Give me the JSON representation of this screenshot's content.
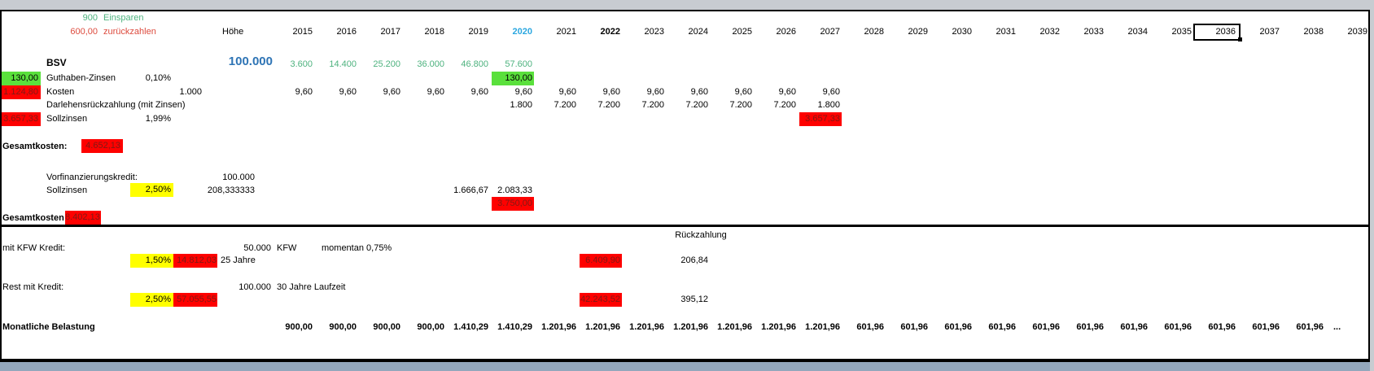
{
  "colors": {
    "green_text": "#4db27e",
    "red_text": "#dd4b3e",
    "blue_amount": "#2e74b5",
    "blue_year": "#2ba7e0",
    "cell_red_bg": "#fe0100",
    "cell_red_text": "#7f1a15",
    "cell_green_bg": "#5ae03c",
    "cell_yellow_bg": "#ffff00",
    "bottom_bar": "#93a7bc"
  },
  "header": {
    "years": [
      "2015",
      "2016",
      "2017",
      "2018",
      "2019",
      "2020",
      "2021",
      "2022",
      "2023",
      "2024",
      "2025",
      "2026",
      "2027",
      "2028",
      "2029",
      "2030",
      "2031",
      "2032",
      "2033",
      "2034",
      "2035",
      "2036",
      "2037",
      "2038",
      "2039"
    ],
    "blue_year": "2020",
    "bold_year": "2022",
    "selected_year": "2036",
    "hoehe_label": "Höhe"
  },
  "left": {
    "einsparen": {
      "value": "900",
      "label": "Einsparen"
    },
    "zurueckzahlen": {
      "value": "600,00",
      "label": "zurückzahlen"
    },
    "bsv": {
      "label": "BSV",
      "amount": "100.000"
    },
    "guthaben": {
      "side": "130,00",
      "label": "Guthaben-Zinsen",
      "rate": "0,10%"
    },
    "kosten": {
      "side": "1.124,80",
      "label": "Kosten",
      "hoehe": "1.000"
    },
    "darlehen": {
      "label": "Darlehensrückzahlung (mit Zinsen)"
    },
    "sollzinsen": {
      "side": "3.657,33",
      "label": "Sollzinsen",
      "rate": "1,99%"
    },
    "gesamtkosten": {
      "label": "Gesamtkosten:",
      "value": "4.652,13"
    },
    "vorfinanzierung": {
      "label": "Vorfinanzierungskredit:",
      "amount": "100.000"
    },
    "sollzinsen2": {
      "label": "Sollzinsen",
      "rate": "2,50%",
      "monthly": "208,333333"
    },
    "gesamtkosten_bsv": {
      "label": "Gesamtkosten BSV:",
      "value": "8.402,13"
    },
    "rueckzahlung_label": "Rückzahlung",
    "kfw": {
      "label": "mit KFW Kredit:",
      "amount": "50.000",
      "bank": "KFW",
      "note": "momentan 0,75%",
      "rate": "1,50%",
      "total": "14.812,03",
      "term": "25 Jahre"
    },
    "rest": {
      "label": "Rest mit Kredit:",
      "amount": "100.000",
      "term": "30 Jahre Laufzeit",
      "rate": "2,50%",
      "total": "57.055,55"
    },
    "monatlich_label": "Monatliche Belastung"
  },
  "year_data": {
    "bsv_values": [
      {
        "year": "2015",
        "value": "3.600"
      },
      {
        "year": "2016",
        "value": "14.400"
      },
      {
        "year": "2017",
        "value": "25.200"
      },
      {
        "year": "2018",
        "value": "36.000"
      },
      {
        "year": "2019",
        "value": "46.800"
      },
      {
        "year": "2020",
        "value": "57.600"
      }
    ],
    "guthaben_cells": [
      {
        "year": "2020",
        "value": "130,00",
        "bg": "green"
      }
    ],
    "kosten_values": [
      {
        "year": "2015",
        "value": "9,60"
      },
      {
        "year": "2016",
        "value": "9,60"
      },
      {
        "year": "2017",
        "value": "9,60"
      },
      {
        "year": "2018",
        "value": "9,60"
      },
      {
        "year": "2019",
        "value": "9,60"
      },
      {
        "year": "2020",
        "value": "9,60"
      },
      {
        "year": "2021",
        "value": "9,60"
      },
      {
        "year": "2022",
        "value": "9,60"
      },
      {
        "year": "2023",
        "value": "9,60"
      },
      {
        "year": "2024",
        "value": "9,60"
      },
      {
        "year": "2025",
        "value": "9,60"
      },
      {
        "year": "2026",
        "value": "9,60"
      },
      {
        "year": "2027",
        "value": "9,60"
      }
    ],
    "darlehen_values": [
      {
        "year": "2020",
        "value": "1.800"
      },
      {
        "year": "2021",
        "value": "7.200"
      },
      {
        "year": "2022",
        "value": "7.200"
      },
      {
        "year": "2023",
        "value": "7.200"
      },
      {
        "year": "2024",
        "value": "7.200"
      },
      {
        "year": "2025",
        "value": "7.200"
      },
      {
        "year": "2026",
        "value": "7.200"
      },
      {
        "year": "2027",
        "value": "1.800"
      }
    ],
    "sollzinsen_cells": [
      {
        "year": "2027",
        "value": "3.657,33",
        "bg": "red"
      }
    ],
    "vorfin_zinsen": [
      {
        "year": "2019",
        "value": "1.666,67"
      },
      {
        "year": "2020",
        "value": "2.083,33"
      }
    ],
    "vorfin_red": [
      {
        "year": "2020",
        "value": "3.750,00",
        "bg": "red"
      }
    ],
    "kfw_cells": [
      {
        "year": "2022",
        "value": "6.409,90",
        "bg": "red"
      },
      {
        "year": "2024",
        "value": "206,84"
      }
    ],
    "rest_cells": [
      {
        "year": "2022",
        "value": "42.243,52",
        "bg": "red"
      },
      {
        "year": "2024",
        "value": "395,12"
      }
    ],
    "monthly_values": [
      {
        "year": "2015",
        "value": "900,00"
      },
      {
        "year": "2016",
        "value": "900,00"
      },
      {
        "year": "2017",
        "value": "900,00"
      },
      {
        "year": "2018",
        "value": "900,00"
      },
      {
        "year": "2019",
        "value": "1.410,29"
      },
      {
        "year": "2020",
        "value": "1.410,29"
      },
      {
        "year": "2021",
        "value": "1.201,96"
      },
      {
        "year": "2022",
        "value": "1.201,96"
      },
      {
        "year": "2023",
        "value": "1.201,96"
      },
      {
        "year": "2024",
        "value": "1.201,96"
      },
      {
        "year": "2025",
        "value": "1.201,96"
      },
      {
        "year": "2026",
        "value": "1.201,96"
      },
      {
        "year": "2027",
        "value": "1.201,96"
      },
      {
        "year": "2028",
        "value": "601,96"
      },
      {
        "year": "2029",
        "value": "601,96"
      },
      {
        "year": "2030",
        "value": "601,96"
      },
      {
        "year": "2031",
        "value": "601,96"
      },
      {
        "year": "2032",
        "value": "601,96"
      },
      {
        "year": "2033",
        "value": "601,96"
      },
      {
        "year": "2034",
        "value": "601,96"
      },
      {
        "year": "2035",
        "value": "601,96"
      },
      {
        "year": "2036",
        "value": "601,96"
      },
      {
        "year": "2037",
        "value": "601,96"
      },
      {
        "year": "2038",
        "value": "601,96"
      },
      {
        "year": "2039",
        "value": "...",
        "align": "left"
      }
    ]
  }
}
